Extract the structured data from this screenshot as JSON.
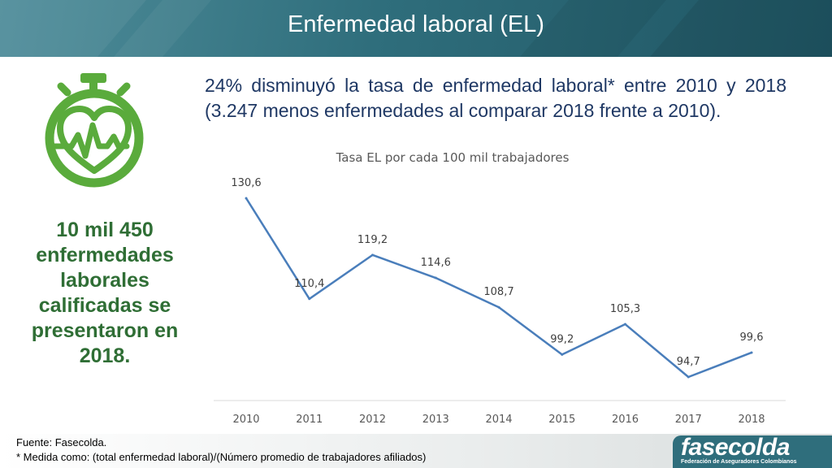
{
  "header": {
    "title": "Enfermedad laboral (EL)"
  },
  "intro_text": "24% disminuyó la tasa de enfermedad laboral* entre 2010 y 2018 (3.247 menos enfermedades al comparar 2018 frente a 2010).",
  "left_text": "10 mil 450 enfermedades laborales calificadas se presentaron en 2018.",
  "icon": {
    "name": "stopwatch-heart-icon",
    "color": "#5aab3c"
  },
  "chart_data": {
    "type": "line",
    "title": "Tasa EL por cada 100 mil trabajadores",
    "x": [
      "2010",
      "2011",
      "2012",
      "2013",
      "2014",
      "2015",
      "2016",
      "2017",
      "2018"
    ],
    "values": [
      130.6,
      110.4,
      119.2,
      114.6,
      108.7,
      99.2,
      105.3,
      94.7,
      99.6
    ],
    "data_labels": [
      "130,6",
      "110,4",
      "119,2",
      "114,6",
      "108,7",
      "99,2",
      "105,3",
      "94,7",
      "99,6"
    ],
    "line_color": "#4a7ebb",
    "grid": false,
    "legend": "none"
  },
  "footer": {
    "source": "Fuente: Fasecolda.",
    "note": "* Medida como: (total enfermedad laboral)/(Número promedio de trabajadores afiliados)"
  },
  "logo": {
    "name": "fasecolda",
    "subtitle": "Federación de Aseguradores Colombianos"
  }
}
